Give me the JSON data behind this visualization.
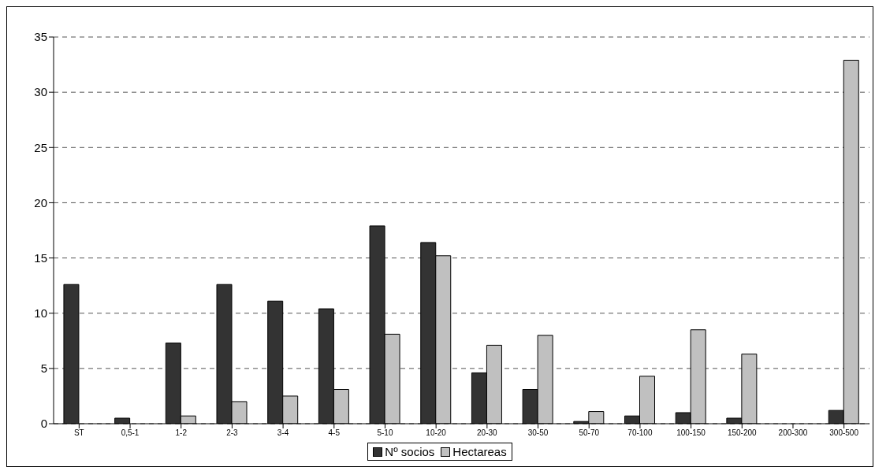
{
  "chart_data": {
    "type": "bar",
    "categories": [
      "ST",
      "0,5-1",
      "1-2",
      "2-3",
      "3-4",
      "4-5",
      "5-10",
      "10-20",
      "20-30",
      "30-50",
      "50-70",
      "70-100",
      "100-150",
      "150-200",
      "200-300",
      "300-500"
    ],
    "series": [
      {
        "name": "Nº socios",
        "color": "#333333",
        "values": [
          12.6,
          0.5,
          7.3,
          12.6,
          11.1,
          10.4,
          17.9,
          16.4,
          4.6,
          3.1,
          0.2,
          0.7,
          1.0,
          0.5,
          0,
          1.2
        ]
      },
      {
        "name": "Hectareas",
        "color": "#c0c0c0",
        "values": [
          0,
          0,
          0.7,
          2.0,
          2.5,
          3.1,
          8.1,
          15.2,
          7.1,
          8.0,
          1.1,
          4.3,
          8.5,
          6.3,
          0,
          32.9
        ]
      }
    ],
    "ylim": [
      0,
      35
    ],
    "yticks": [
      0,
      5,
      10,
      15,
      20,
      25,
      30,
      35
    ],
    "grid": "y",
    "legend": "bottom"
  }
}
